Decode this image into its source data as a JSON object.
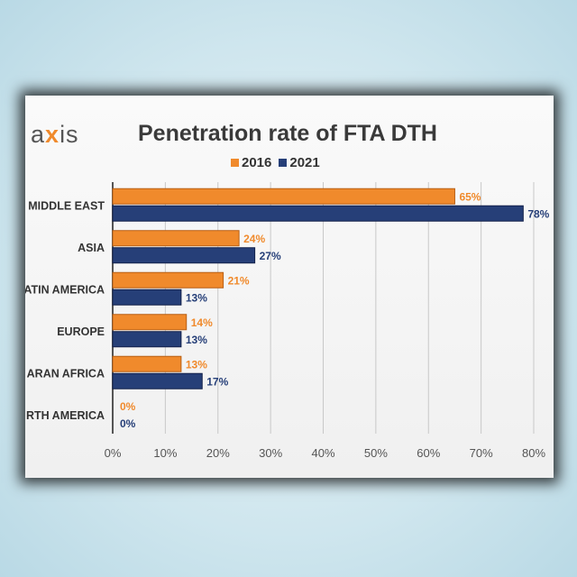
{
  "logo_text": "axis",
  "chart_data": {
    "type": "bar",
    "orientation": "horizontal",
    "title": "Penetration rate of FTA DTH",
    "categories": [
      "MIDDLE EAST",
      "ASIA",
      "ATIN AMERICA",
      "EUROPE",
      "ARAN AFRICA",
      "RTH AMERICA"
    ],
    "series": [
      {
        "name": "2016",
        "values": [
          65,
          24,
          21,
          14,
          13,
          0
        ],
        "labels": [
          "65%",
          "24%",
          "21%",
          "14%",
          "13%",
          "0%"
        ],
        "color": "#f08a2c"
      },
      {
        "name": "2021",
        "values": [
          78,
          27,
          13,
          13,
          17,
          0
        ],
        "labels": [
          "78%",
          "27%",
          "13%",
          "13%",
          "17%",
          "0%"
        ],
        "color": "#263f78"
      }
    ],
    "xlim": [
      0,
      80
    ],
    "xticks": [
      "0%",
      "10%",
      "20%",
      "30%",
      "40%",
      "50%",
      "60%",
      "70%",
      "80%"
    ],
    "grid": true,
    "legend": "top"
  }
}
